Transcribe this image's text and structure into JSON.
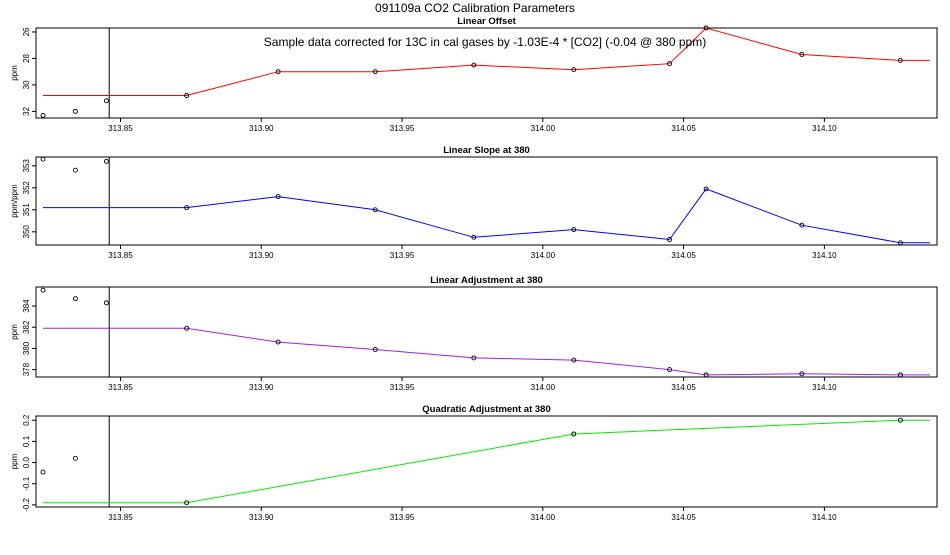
{
  "page_title": "091109a   CO2 Calibration Parameters",
  "chart_data": [
    {
      "type": "line",
      "title": "Linear Offset",
      "xlabel": "",
      "ylabel": "ppm",
      "xlim": [
        313.82,
        314.14
      ],
      "ylim": [
        25.7,
        32.5
      ],
      "y_reversed": true,
      "x_ticks": [
        "313.85",
        "313.90",
        "313.95",
        "314.00",
        "314.05",
        "314.10"
      ],
      "y_ticks": [
        "32",
        "30",
        "28",
        "26"
      ],
      "y_tick_values": [
        32,
        30,
        28,
        26
      ],
      "line_color": "#ff0000",
      "vline_x": 313.846,
      "annotation": "Sample data corrected for 13C in cal gases by -1.03E-4 * [CO2] (-0.04 @ 380 ppm)",
      "line": {
        "x": [
          313.8225,
          313.8735,
          313.906,
          313.9405,
          313.9755,
          314.011,
          314.045,
          314.058,
          314.092,
          314.127,
          314.1375
        ],
        "y": [
          30.8,
          30.8,
          29.0,
          29.0,
          28.5,
          28.85,
          28.4,
          25.7,
          27.7,
          28.15,
          28.15
        ]
      },
      "points": {
        "x": [
          313.8225,
          313.834,
          313.845,
          313.8735,
          313.906,
          313.9405,
          313.9755,
          314.011,
          314.045,
          314.058,
          314.092,
          314.127
        ],
        "y": [
          32.3,
          32.0,
          31.2,
          30.8,
          29.0,
          29.0,
          28.5,
          28.85,
          28.4,
          25.7,
          27.7,
          28.15
        ]
      }
    },
    {
      "type": "line",
      "title": "Linear Slope at 380",
      "xlabel": "",
      "ylabel": "ppm/ppm",
      "xlim": [
        313.82,
        314.14
      ],
      "ylim": [
        349.4,
        353.4
      ],
      "y_reversed": false,
      "x_ticks": [
        "313.85",
        "313.90",
        "313.95",
        "314.00",
        "314.05",
        "314.10"
      ],
      "y_ticks": [
        "350",
        "351",
        "352",
        "353"
      ],
      "y_tick_values": [
        350,
        351,
        352,
        353
      ],
      "line_color": "#0000ff",
      "vline_x": 313.846,
      "annotation": "",
      "line": {
        "x": [
          313.8225,
          313.8735,
          313.906,
          313.9405,
          313.9755,
          314.011,
          314.045,
          314.058,
          314.092,
          314.127,
          314.1375
        ],
        "y": [
          351.1,
          351.1,
          351.6,
          351.0,
          349.75,
          350.1,
          349.65,
          351.95,
          350.3,
          349.5,
          349.5
        ]
      },
      "points": {
        "x": [
          313.8225,
          313.834,
          313.845,
          313.8735,
          313.906,
          313.9405,
          313.9755,
          314.011,
          314.045,
          314.058,
          314.092,
          314.127
        ],
        "y": [
          353.3,
          352.8,
          353.2,
          351.1,
          351.6,
          351.0,
          349.75,
          350.1,
          349.65,
          351.95,
          350.3,
          349.5
        ]
      }
    },
    {
      "type": "line",
      "title": "Linear Adjustment at 380",
      "xlabel": "",
      "ylabel": "ppm",
      "xlim": [
        313.82,
        314.14
      ],
      "ylim": [
        377.3,
        385.8
      ],
      "y_reversed": false,
      "x_ticks": [
        "313.85",
        "313.90",
        "313.95",
        "314.00",
        "314.05",
        "314.10"
      ],
      "y_ticks": [
        "378",
        "380",
        "382",
        "384"
      ],
      "y_tick_values": [
        378,
        380,
        382,
        384
      ],
      "line_color": "#a020f0",
      "vline_x": 313.846,
      "annotation": "",
      "line": {
        "x": [
          313.8225,
          313.8735,
          313.906,
          313.9405,
          313.9755,
          314.011,
          314.045,
          314.058,
          314.092,
          314.127,
          314.1375
        ],
        "y": [
          381.9,
          381.9,
          380.6,
          379.9,
          379.1,
          378.9,
          378.0,
          377.5,
          377.6,
          377.5,
          377.5
        ]
      },
      "points": {
        "x": [
          313.8225,
          313.834,
          313.845,
          313.8735,
          313.906,
          313.9405,
          313.9755,
          314.011,
          314.045,
          314.058,
          314.092,
          314.127
        ],
        "y": [
          385.5,
          384.7,
          384.3,
          381.9,
          380.6,
          379.9,
          379.1,
          378.9,
          378.0,
          377.5,
          377.6,
          377.5
        ]
      }
    },
    {
      "type": "line",
      "title": "Quadratic Adjustment at 380",
      "xlabel": "",
      "ylabel": "ppm",
      "xlim": [
        313.82,
        314.14
      ],
      "ylim": [
        -0.21,
        0.22
      ],
      "y_reversed": false,
      "x_ticks": [
        "313.85",
        "313.90",
        "313.95",
        "314.00",
        "314.05",
        "314.10"
      ],
      "y_ticks": [
        "-0.2",
        "-0.1",
        "0.0",
        "0.1",
        "0.2"
      ],
      "y_tick_values": [
        -0.2,
        -0.1,
        0.0,
        0.1,
        0.2
      ],
      "line_color": "#00ee00",
      "vline_x": 313.846,
      "annotation": "",
      "line": {
        "x": [
          313.8225,
          313.8735,
          314.011,
          314.127,
          314.1375
        ],
        "y": [
          -0.19,
          -0.19,
          0.135,
          0.2,
          0.2
        ]
      },
      "points": {
        "x": [
          313.8225,
          313.834,
          313.8735,
          314.011,
          314.127
        ],
        "y": [
          -0.045,
          0.02,
          -0.19,
          0.135,
          0.2
        ]
      }
    }
  ]
}
